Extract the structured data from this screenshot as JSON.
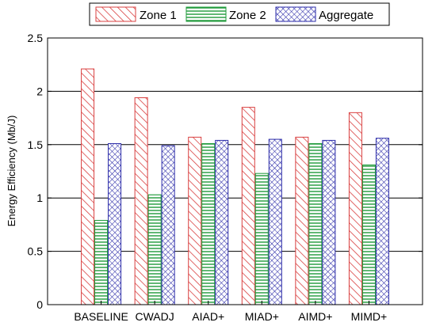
{
  "chart_data": {
    "type": "bar",
    "title": "",
    "xlabel": "",
    "ylabel": "Energy Efficiency (Mb/J)",
    "ylim": [
      0,
      2.5
    ],
    "yticks": [
      0,
      0.5,
      1,
      1.5,
      2,
      2.5
    ],
    "ytick_labels": [
      "0",
      "0.5",
      "1",
      "1.5",
      "2",
      "2.5"
    ],
    "grid": "horizontal",
    "legend_position": "top",
    "categories": [
      "BASELINE",
      "CWADJ",
      "AIAD+",
      "MIAD+",
      "AIMD+",
      "MIMD+"
    ],
    "series": [
      {
        "name": "Zone 1",
        "pattern": "diagonal-hatch",
        "color": "#d94040",
        "values": [
          2.21,
          1.94,
          1.57,
          1.85,
          1.57,
          1.8
        ]
      },
      {
        "name": "Zone 2",
        "pattern": "horizontal-lines",
        "color": "#1f9a3a",
        "values": [
          0.79,
          1.03,
          1.51,
          1.23,
          1.51,
          1.31
        ]
      },
      {
        "name": "Aggregate",
        "pattern": "crosshatch",
        "color": "#2a2aa8",
        "values": [
          1.51,
          1.49,
          1.54,
          1.55,
          1.54,
          1.56
        ]
      }
    ]
  }
}
